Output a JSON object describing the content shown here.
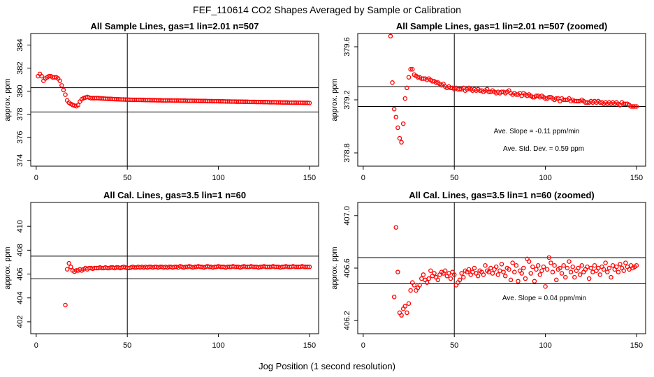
{
  "figure": {
    "title": "FEF_110614  CO2 Shapes Averaged by Sample or Calibration",
    "xlabel": "Jog Position (1 second resolution)"
  },
  "colors": {
    "points": "#ff0000",
    "axes": "#000000",
    "background": "#ffffff"
  },
  "chart_data": [
    {
      "type": "scatter",
      "title": "All Sample Lines, gas=1 lin=2.01 n=507",
      "ylabel": "approx. ppm",
      "xlim": [
        -3,
        155
      ],
      "ylim": [
        373.5,
        385
      ],
      "xticks": [
        "0",
        "50",
        "100",
        "150"
      ],
      "xtick_values": [
        0,
        50,
        100,
        150
      ],
      "yticks": [
        "374",
        "376",
        "378",
        "380",
        "382",
        "384"
      ],
      "ytick_values": [
        374,
        376,
        378,
        380,
        382,
        384
      ],
      "vline": 50,
      "hlines": [
        378.2,
        380.3
      ],
      "annotations": [],
      "x": [
        1,
        2,
        3,
        4,
        5,
        6,
        7,
        8,
        9,
        10,
        11,
        12,
        13,
        14,
        15,
        16,
        17,
        18,
        19,
        20,
        21,
        22,
        23,
        24,
        25,
        26,
        27,
        28,
        29,
        30,
        31,
        32,
        33,
        34,
        35,
        36,
        37,
        38,
        39,
        40,
        41,
        42,
        43,
        44,
        45,
        46,
        47,
        48,
        49,
        50,
        51,
        52,
        53,
        54,
        55,
        56,
        57,
        58,
        59,
        60,
        61,
        62,
        63,
        64,
        65,
        66,
        67,
        68,
        69,
        70,
        71,
        72,
        73,
        74,
        75,
        76,
        77,
        78,
        79,
        80,
        81,
        82,
        83,
        84,
        85,
        86,
        87,
        88,
        89,
        90,
        91,
        92,
        93,
        94,
        95,
        96,
        97,
        98,
        99,
        100,
        101,
        102,
        103,
        104,
        105,
        106,
        107,
        108,
        109,
        110,
        111,
        112,
        113,
        114,
        115,
        116,
        117,
        118,
        119,
        120,
        121,
        122,
        123,
        124,
        125,
        126,
        127,
        128,
        129,
        130,
        131,
        132,
        133,
        134,
        135,
        136,
        137,
        138,
        139,
        140,
        141,
        142,
        143,
        144,
        145,
        146,
        147,
        148,
        149,
        150
      ],
      "y": [
        381.3,
        381.5,
        381.3,
        380.9,
        381.1,
        381.2,
        381.3,
        381.3,
        381.2,
        381.2,
        381.2,
        381.1,
        380.9,
        380.5,
        380.1,
        379.7,
        379.2,
        379.0,
        378.9,
        378.8,
        378.75,
        378.7,
        378.8,
        379.1,
        379.3,
        379.4,
        379.45,
        379.5,
        379.45,
        379.4,
        379.4,
        379.4,
        379.4,
        379.4,
        379.38,
        379.37,
        379.36,
        379.35,
        379.34,
        379.33,
        379.33,
        379.32,
        379.31,
        379.3,
        379.3,
        379.29,
        379.28,
        379.28,
        379.27,
        379.27,
        379.26,
        379.26,
        379.25,
        379.25,
        379.25,
        379.25,
        379.25,
        379.24,
        379.24,
        379.23,
        379.23,
        379.23,
        379.22,
        379.22,
        379.22,
        379.21,
        379.21,
        379.21,
        379.2,
        379.2,
        379.2,
        379.2,
        379.2,
        379.2,
        379.19,
        379.19,
        379.19,
        379.19,
        379.18,
        379.18,
        379.18,
        379.18,
        379.17,
        379.17,
        379.17,
        379.17,
        379.16,
        379.16,
        379.16,
        379.15,
        379.15,
        379.15,
        379.15,
        379.14,
        379.14,
        379.14,
        379.13,
        379.13,
        379.13,
        379.13,
        379.12,
        379.12,
        379.12,
        379.11,
        379.11,
        379.11,
        379.1,
        379.1,
        379.1,
        379.09,
        379.09,
        379.09,
        379.09,
        379.08,
        379.08,
        379.08,
        379.07,
        379.07,
        379.07,
        379.07,
        379.06,
        379.06,
        379.06,
        379.06,
        379.05,
        379.05,
        379.05,
        379.04,
        379.04,
        379.04,
        379.04,
        379.03,
        379.03,
        379.03,
        379.02,
        379.02,
        379.02,
        379.02,
        379.01,
        379.01,
        379.01,
        379.01,
        379.0,
        379.0,
        379.0,
        379.0,
        378.99,
        378.99,
        378.99,
        378.98
      ]
    },
    {
      "type": "scatter",
      "title": "All Sample Lines, gas=1 lin=2.01 n=507 (zoomed)",
      "ylabel": "approx. ppm",
      "xlim": [
        -3,
        155
      ],
      "ylim": [
        378.7,
        379.7
      ],
      "xticks": [
        "0",
        "50",
        "100",
        "150"
      ],
      "xtick_values": [
        0,
        50,
        100,
        150
      ],
      "yticks": [
        "378.8",
        "379.2",
        "379.6"
      ],
      "ytick_values": [
        378.8,
        379.2,
        379.6
      ],
      "vline": 50,
      "hlines": [
        379.15,
        379.3
      ],
      "annotations": [
        "Ave. Slope =  -0.11  ppm/min",
        "Ave. Std. Dev. =  0.59  ppm"
      ],
      "x": [
        15,
        16,
        17,
        18,
        19,
        20,
        21,
        22,
        23,
        24,
        25,
        26,
        27,
        28,
        29,
        30,
        31,
        32,
        33,
        34,
        35,
        36,
        37,
        38,
        39,
        40,
        41,
        42,
        43,
        44,
        45,
        46,
        47,
        48,
        49,
        50,
        51,
        52,
        53,
        54,
        55,
        56,
        57,
        58,
        59,
        60,
        61,
        62,
        63,
        64,
        65,
        66,
        67,
        68,
        69,
        70,
        71,
        72,
        73,
        74,
        75,
        76,
        77,
        78,
        79,
        80,
        81,
        82,
        83,
        84,
        85,
        86,
        87,
        88,
        89,
        90,
        91,
        92,
        93,
        94,
        95,
        96,
        97,
        98,
        99,
        100,
        101,
        102,
        103,
        104,
        105,
        106,
        107,
        108,
        109,
        110,
        111,
        112,
        113,
        114,
        115,
        116,
        117,
        118,
        119,
        120,
        121,
        122,
        123,
        124,
        125,
        126,
        127,
        128,
        129,
        130,
        131,
        132,
        133,
        134,
        135,
        136,
        137,
        138,
        139,
        140,
        141,
        142,
        143,
        144,
        145,
        146,
        147,
        148,
        149,
        150
      ],
      "y": [
        379.68,
        379.33,
        379.13,
        379.07,
        378.99,
        378.91,
        378.88,
        379.02,
        379.21,
        379.29,
        379.37,
        379.43,
        379.43,
        379.39,
        379.38,
        379.37,
        379.37,
        379.36,
        379.36,
        379.36,
        379.35,
        379.36,
        379.35,
        379.34,
        379.34,
        379.33,
        379.33,
        379.32,
        379.31,
        379.32,
        379.3,
        379.29,
        379.3,
        379.29,
        379.29,
        379.28,
        379.29,
        379.28,
        379.28,
        379.28,
        379.29,
        379.27,
        379.28,
        379.29,
        379.28,
        379.27,
        379.28,
        379.27,
        379.28,
        379.27,
        379.27,
        379.26,
        379.27,
        379.28,
        379.26,
        379.26,
        379.27,
        379.26,
        379.25,
        379.26,
        379.25,
        379.26,
        379.26,
        379.25,
        379.26,
        379.27,
        379.25,
        379.24,
        379.25,
        379.24,
        379.24,
        379.25,
        379.23,
        379.25,
        379.24,
        379.23,
        379.24,
        379.23,
        379.22,
        379.22,
        379.23,
        379.23,
        379.22,
        379.23,
        379.22,
        379.21,
        379.21,
        379.22,
        379.22,
        379.21,
        379.2,
        379.21,
        379.21,
        379.19,
        379.21,
        379.2,
        379.2,
        379.2,
        379.21,
        379.19,
        379.2,
        379.19,
        379.19,
        379.19,
        379.19,
        379.2,
        379.19,
        379.18,
        379.18,
        379.18,
        379.19,
        379.18,
        379.19,
        379.18,
        379.19,
        379.18,
        379.18,
        379.17,
        379.18,
        379.17,
        379.18,
        379.17,
        379.18,
        379.17,
        379.18,
        379.17,
        379.16,
        379.18,
        379.17,
        379.17,
        379.17,
        379.16,
        379.15,
        379.15,
        379.15,
        379.15
      ]
    },
    {
      "type": "scatter",
      "title": "All Cal. Lines, gas=3.5 lin=1 n=60",
      "ylabel": "approx. ppm",
      "xlim": [
        -3,
        155
      ],
      "ylim": [
        401,
        412
      ],
      "xticks": [
        "0",
        "50",
        "100",
        "150"
      ],
      "xtick_values": [
        0,
        50,
        100,
        150
      ],
      "yticks": [
        "402",
        "404",
        "406",
        "408",
        "410"
      ],
      "ytick_values": [
        402,
        404,
        406,
        408,
        410
      ],
      "vline": 50,
      "hlines": [
        405.6,
        407.5
      ],
      "annotations": [],
      "x": [
        16,
        17,
        18,
        19,
        20,
        21,
        22,
        23,
        24,
        25,
        26,
        27,
        28,
        29,
        30,
        31,
        32,
        33,
        34,
        35,
        36,
        37,
        38,
        39,
        40,
        41,
        42,
        43,
        44,
        45,
        46,
        47,
        48,
        49,
        50,
        51,
        52,
        53,
        54,
        55,
        56,
        57,
        58,
        59,
        60,
        61,
        62,
        63,
        64,
        65,
        66,
        67,
        68,
        69,
        70,
        71,
        72,
        73,
        74,
        75,
        76,
        77,
        78,
        79,
        80,
        81,
        82,
        83,
        84,
        85,
        86,
        87,
        88,
        89,
        90,
        91,
        92,
        93,
        94,
        95,
        96,
        97,
        98,
        99,
        100,
        101,
        102,
        103,
        104,
        105,
        106,
        107,
        108,
        109,
        110,
        111,
        112,
        113,
        114,
        115,
        116,
        117,
        118,
        119,
        120,
        121,
        122,
        123,
        124,
        125,
        126,
        127,
        128,
        129,
        130,
        131,
        132,
        133,
        134,
        135,
        136,
        137,
        138,
        139,
        140,
        141,
        142,
        143,
        144,
        145,
        146,
        147,
        148,
        149,
        150
      ],
      "y": [
        403.4,
        406.4,
        406.9,
        406.6,
        406.3,
        406.2,
        406.3,
        406.3,
        406.4,
        406.3,
        406.4,
        406.5,
        406.4,
        406.5,
        406.5,
        406.45,
        406.5,
        406.5,
        406.5,
        406.55,
        406.5,
        406.5,
        406.55,
        406.5,
        406.5,
        406.55,
        406.55,
        406.5,
        406.55,
        406.55,
        406.5,
        406.55,
        406.6,
        406.55,
        406.5,
        406.5,
        406.55,
        406.6,
        406.55,
        406.55,
        406.6,
        406.55,
        406.6,
        406.55,
        406.6,
        406.55,
        406.6,
        406.6,
        406.55,
        406.6,
        406.6,
        406.55,
        406.6,
        406.6,
        406.55,
        406.6,
        406.55,
        406.6,
        406.6,
        406.55,
        406.6,
        406.6,
        406.55,
        406.65,
        406.6,
        406.55,
        406.6,
        406.6,
        406.65,
        406.6,
        406.55,
        406.6,
        406.6,
        406.65,
        406.6,
        406.6,
        406.55,
        406.6,
        406.65,
        406.6,
        406.6,
        406.55,
        406.6,
        406.6,
        406.65,
        406.6,
        406.6,
        406.6,
        406.55,
        406.6,
        406.6,
        406.6,
        406.65,
        406.6,
        406.6,
        406.6,
        406.55,
        406.6,
        406.65,
        406.6,
        406.6,
        406.6,
        406.65,
        406.6,
        406.6,
        406.6,
        406.55,
        406.6,
        406.6,
        406.65,
        406.6,
        406.6,
        406.6,
        406.6,
        406.65,
        406.6,
        406.6,
        406.6,
        406.55,
        406.6,
        406.6,
        406.65,
        406.6,
        406.6,
        406.6,
        406.65,
        406.6,
        406.6,
        406.6,
        406.6,
        406.65,
        406.6,
        406.6,
        406.6,
        406.6
      ]
    },
    {
      "type": "scatter",
      "title": "All Cal. Lines, gas=3.5 lin=1 n=60 (zoomed)",
      "ylabel": "approx. ppm",
      "xlim": [
        -3,
        155
      ],
      "ylim": [
        406.1,
        407.1
      ],
      "xticks": [
        "0",
        "50",
        "100",
        "150"
      ],
      "xtick_values": [
        0,
        50,
        100,
        150
      ],
      "yticks": [
        "406.2",
        "406.6",
        "407.0"
      ],
      "ytick_values": [
        406.2,
        406.6,
        407.0
      ],
      "vline": 50,
      "hlines": [
        406.48,
        406.68
      ],
      "annotations": [
        "Ave. Slope =  0.04  ppm/min"
      ],
      "x": [
        17,
        18,
        19,
        20,
        21,
        22,
        23,
        24,
        25,
        26,
        27,
        28,
        29,
        30,
        31,
        32,
        33,
        34,
        35,
        36,
        37,
        38,
        39,
        40,
        41,
        42,
        43,
        44,
        45,
        46,
        47,
        48,
        49,
        50,
        51,
        52,
        53,
        54,
        55,
        56,
        57,
        58,
        59,
        60,
        61,
        62,
        63,
        64,
        65,
        66,
        67,
        68,
        69,
        70,
        71,
        72,
        73,
        74,
        75,
        76,
        77,
        78,
        79,
        80,
        81,
        82,
        83,
        84,
        85,
        86,
        87,
        88,
        89,
        90,
        91,
        92,
        93,
        94,
        95,
        96,
        97,
        98,
        99,
        100,
        101,
        102,
        103,
        104,
        105,
        106,
        107,
        108,
        109,
        110,
        111,
        112,
        113,
        114,
        115,
        116,
        117,
        118,
        119,
        120,
        121,
        122,
        123,
        124,
        125,
        126,
        127,
        128,
        129,
        130,
        131,
        132,
        133,
        134,
        135,
        136,
        137,
        138,
        139,
        140,
        141,
        142,
        143,
        144,
        145,
        146,
        147,
        148,
        149,
        150
      ],
      "y": [
        406.38,
        406.91,
        406.57,
        406.26,
        406.24,
        406.29,
        406.31,
        406.26,
        406.33,
        406.43,
        406.49,
        406.47,
        406.43,
        406.45,
        406.47,
        406.52,
        406.55,
        406.51,
        406.49,
        406.52,
        406.58,
        406.54,
        406.56,
        406.53,
        406.51,
        406.55,
        406.57,
        406.56,
        406.58,
        406.54,
        406.56,
        406.52,
        406.57,
        406.55,
        406.47,
        406.49,
        406.51,
        406.56,
        406.53,
        406.58,
        406.57,
        406.59,
        406.55,
        406.57,
        406.6,
        406.56,
        406.54,
        406.58,
        406.57,
        406.55,
        406.62,
        406.58,
        406.57,
        406.6,
        406.56,
        406.59,
        406.61,
        406.55,
        406.58,
        406.63,
        406.57,
        406.54,
        406.6,
        406.59,
        406.51,
        406.64,
        406.57,
        406.62,
        406.5,
        406.58,
        406.56,
        406.6,
        406.52,
        406.67,
        406.65,
        406.56,
        406.61,
        406.5,
        406.59,
        406.62,
        406.55,
        406.58,
        406.61,
        406.46,
        406.59,
        406.68,
        406.64,
        406.57,
        406.62,
        406.51,
        406.59,
        406.6,
        406.56,
        406.62,
        406.53,
        406.6,
        406.65,
        406.57,
        406.61,
        406.53,
        406.58,
        406.6,
        406.55,
        406.62,
        406.57,
        406.59,
        406.61,
        406.52,
        406.6,
        406.57,
        406.62,
        406.58,
        406.6,
        406.55,
        406.61,
        406.59,
        406.64,
        406.57,
        406.6,
        406.53,
        406.62,
        406.59,
        406.61,
        406.57,
        406.63,
        406.6,
        406.58,
        406.64,
        406.61,
        406.59,
        406.62,
        406.6,
        406.61,
        406.62
      ]
    }
  ]
}
